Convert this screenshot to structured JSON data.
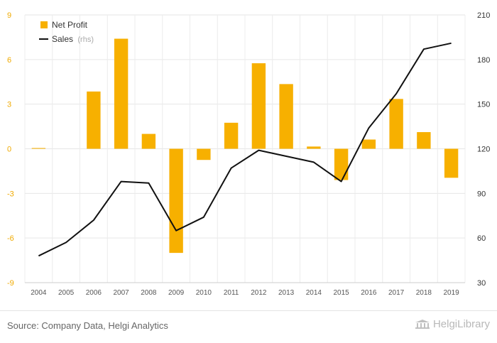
{
  "chart_data": {
    "type": "bar",
    "categories": [
      "2004",
      "2005",
      "2006",
      "2007",
      "2008",
      "2009",
      "2010",
      "2011",
      "2012",
      "2013",
      "2014",
      "2015",
      "2016",
      "2017",
      "2018",
      "2019"
    ],
    "series": [
      {
        "name": "Net Profit",
        "type": "bar",
        "axis": "left",
        "color": "#f7b000",
        "values": [
          0.05,
          0,
          3.85,
          7.4,
          1.0,
          -7.0,
          -0.75,
          1.75,
          5.75,
          4.35,
          0.15,
          -2.1,
          0.62,
          3.35,
          1.12,
          -1.95
        ]
      },
      {
        "name": "Sales",
        "legend_suffix": "(rhs)",
        "type": "line",
        "axis": "right",
        "color": "#111111",
        "values": [
          48,
          57,
          72,
          98,
          97,
          65,
          74,
          107,
          119,
          115,
          111,
          98,
          134,
          157,
          187,
          191
        ]
      }
    ],
    "y_left": {
      "ylim": [
        -9,
        9
      ],
      "ticks": [
        -9,
        -6,
        -3,
        0,
        3,
        6,
        9
      ]
    },
    "y_right": {
      "ylim": [
        30,
        210
      ],
      "ticks": [
        30,
        60,
        90,
        120,
        150,
        180,
        210
      ]
    },
    "legend": "top-left",
    "grid": true
  },
  "footer": {
    "source": "Source: Company Data, Helgi Analytics",
    "brand": "HelgiLibrary"
  }
}
